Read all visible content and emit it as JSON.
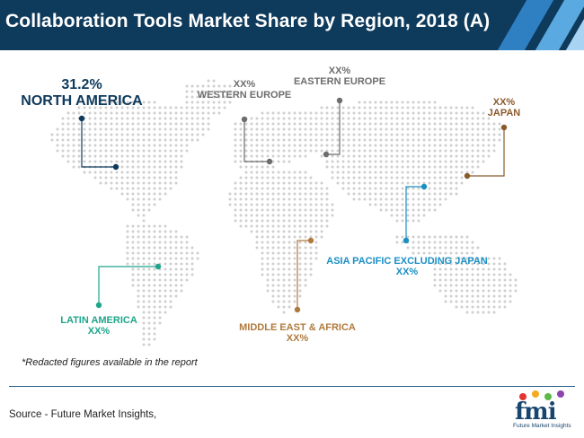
{
  "header": {
    "title": "Collaboration Tools Market Share by Region, 2018 (A)"
  },
  "chart_data": {
    "type": "map",
    "title": "Collaboration Tools Market Share by Region, 2018 (A)",
    "regions": [
      {
        "id": "north-america",
        "name": "NORTH AMERICA",
        "value": "31.2%",
        "color": "#0e3a5b"
      },
      {
        "id": "western-europe",
        "name": "WESTERN EUROPE",
        "value": "XX%",
        "color": "#6d6d6d"
      },
      {
        "id": "eastern-europe",
        "name": "EASTERN EUROPE",
        "value": "XX%",
        "color": "#6d6d6d"
      },
      {
        "id": "japan",
        "name": "JAPAN",
        "value": "XX%",
        "color": "#8b5a2b"
      },
      {
        "id": "asia-pacific",
        "name": "ASIA PACIFIC EXCLUDING JAPAN",
        "value": "XX%",
        "color": "#1a8fc4"
      },
      {
        "id": "middle-east-africa",
        "name": "MIDDLE EAST & AFRICA",
        "value": "XX%",
        "color": "#b07a3c"
      },
      {
        "id": "latin-america",
        "name": "LATIN AMERICA",
        "value": "XX%",
        "color": "#1fa58a"
      }
    ]
  },
  "footnote": "*Redacted figures available in the report",
  "source": "Source - Future Market Insights,",
  "logo": {
    "mark": "fmi",
    "subtitle": "Future Market Insights"
  }
}
